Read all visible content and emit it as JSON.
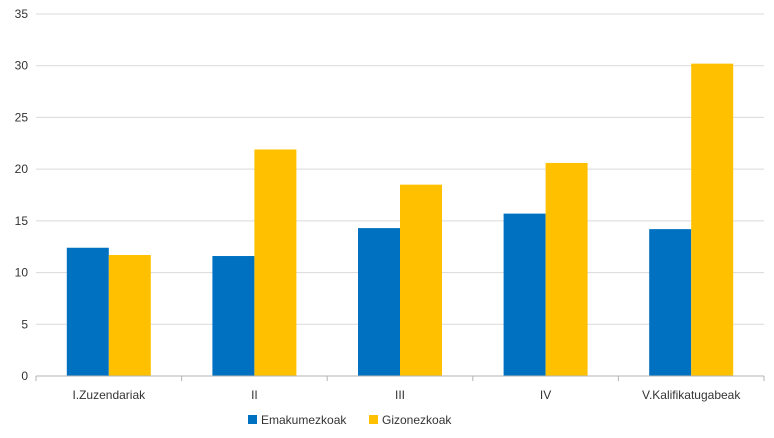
{
  "chart_data": {
    "type": "bar",
    "categories": [
      "I.Zuzendariak",
      "II",
      "III",
      "IV",
      "V.Kalifikatugabeak"
    ],
    "series": [
      {
        "name": "Emakumezkoak",
        "values": [
          12.4,
          11.6,
          14.3,
          15.7,
          14.2
        ],
        "color": "#0070C0"
      },
      {
        "name": "Gizonezkoak",
        "values": [
          11.7,
          21.9,
          18.5,
          20.6,
          30.2
        ],
        "color": "#FFC000"
      }
    ],
    "ylim": [
      0,
      35
    ],
    "yticks": [
      "0",
      "5",
      "10",
      "15",
      "20",
      "25",
      "30",
      "35"
    ],
    "grid": true,
    "legend_position": "bottom"
  }
}
